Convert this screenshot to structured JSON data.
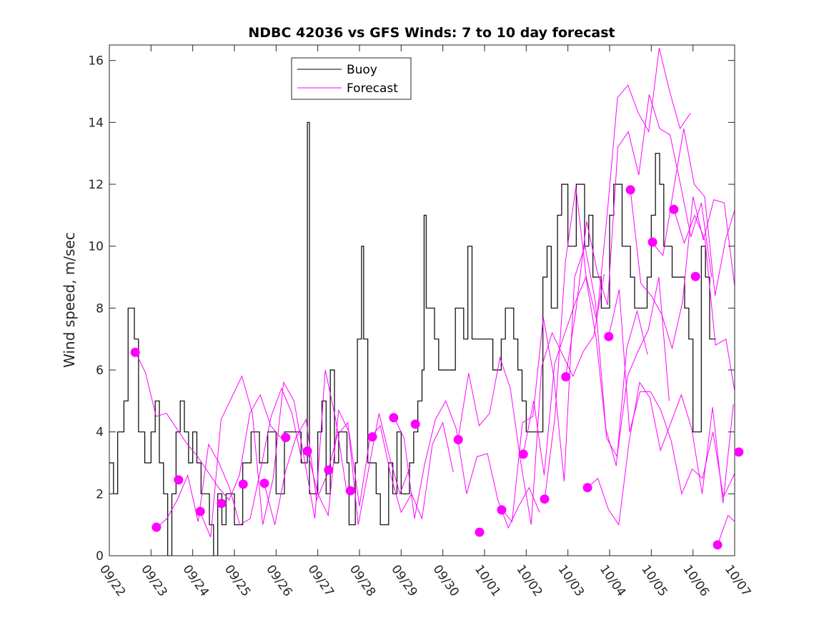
{
  "chart_data": {
    "type": "line",
    "title": "NDBC 42036 vs GFS Winds: 7 to 10 day forecast",
    "xlabel": "",
    "ylabel": "Wind speed, m/sec",
    "xlim": [
      0,
      15
    ],
    "ylim": [
      0,
      16.5
    ],
    "x_units": "days since 09/22",
    "xtick_labels": [
      "09/22",
      "09/23",
      "09/24",
      "09/25",
      "09/26",
      "09/27",
      "09/28",
      "09/29",
      "09/30",
      "10/01",
      "10/02",
      "10/03",
      "10/04",
      "10/05",
      "10/06",
      "10/07"
    ],
    "yticks": [
      0,
      2,
      4,
      6,
      8,
      10,
      12,
      14,
      16
    ],
    "legend": {
      "placement": "top-center",
      "entries": [
        {
          "label": "Buoy",
          "color": "#000000"
        },
        {
          "label": "Forecast",
          "color": "#ff00ff"
        }
      ]
    },
    "colors": {
      "buoy": "#000000",
      "forecast": "#ff00ff",
      "axis": "#262626"
    },
    "buoy": {
      "x": [
        0,
        0.1,
        0.2,
        0.35,
        0.45,
        0.55,
        0.6,
        0.7,
        0.85,
        1.0,
        1.1,
        1.2,
        1.3,
        1.4,
        1.5,
        1.6,
        1.7,
        1.8,
        1.9,
        2.0,
        2.1,
        2.2,
        2.4,
        2.5,
        2.6,
        2.7,
        2.8,
        3.0,
        3.2,
        3.4,
        3.6,
        3.8,
        4.0,
        4.2,
        4.4,
        4.6,
        4.75,
        4.8,
        5.0,
        5.1,
        5.2,
        5.3,
        5.4,
        5.5,
        5.7,
        5.75,
        5.9,
        5.95,
        6.05,
        6.1,
        6.2,
        6.4,
        6.5,
        6.7,
        6.8,
        6.9,
        7.0,
        7.2,
        7.3,
        7.4,
        7.5,
        7.55,
        7.6,
        7.8,
        7.9,
        8.1,
        8.3,
        8.5,
        8.6,
        8.7,
        9.0,
        9.2,
        9.4,
        9.5,
        9.7,
        9.8,
        9.9,
        10.0,
        10.1,
        10.3,
        10.4,
        10.5,
        10.6,
        10.75,
        10.85,
        11.0,
        11.2,
        11.4,
        11.5,
        11.6,
        11.7,
        11.8,
        12.0,
        12.1,
        12.3,
        12.5,
        12.6,
        12.9,
        13.0,
        13.1,
        13.2,
        13.3,
        13.5,
        13.8,
        13.9,
        14.0,
        14.2,
        14.3,
        14.4
      ],
      "y": [
        3,
        2,
        4,
        5,
        8,
        8,
        7,
        4,
        3,
        4,
        5,
        3,
        2,
        0,
        2,
        4,
        5,
        4,
        3,
        4,
        3,
        2,
        1,
        0,
        2,
        1,
        2,
        1,
        3,
        4,
        3,
        4,
        2,
        4,
        4,
        3,
        14,
        2,
        4,
        5,
        2,
        6,
        3,
        4,
        3,
        1,
        3,
        7,
        10,
        7,
        3,
        2,
        1,
        3,
        2,
        4,
        2,
        3,
        4,
        5,
        6,
        11,
        8,
        7,
        6,
        6,
        8,
        7,
        10,
        7,
        7,
        6,
        7,
        8,
        7,
        6,
        5,
        4,
        4,
        4,
        9,
        10,
        8,
        11,
        12,
        10,
        12,
        10,
        11,
        9,
        9,
        8,
        11,
        12,
        10,
        9,
        8,
        9,
        11,
        13,
        12,
        10,
        9,
        8,
        7,
        4,
        10,
        9,
        7
      ]
    },
    "forecast_step_days": 0.25,
    "forecast": [
      {
        "start": 0.62,
        "values": [
          6.6,
          5.9,
          4.5,
          4.6,
          4.1,
          3.6,
          3.2,
          2.7,
          2.2,
          1.8,
          2.6,
          4.6,
          5.2,
          4.2,
          3.8
        ]
      },
      {
        "start": 1.13,
        "values": [
          0.9,
          1.2,
          1.8,
          2.6,
          1.1,
          3.6,
          3.0,
          2.2,
          1.0,
          1.2,
          2.8,
          4.5,
          5.4,
          4.6,
          3.0
        ]
      },
      {
        "start": 2.18,
        "values": [
          1.4,
          0.6,
          4.4,
          5.1,
          5.8,
          4.6,
          1.0,
          2.5,
          5.6,
          5.0,
          3.1,
          1.2,
          6.0,
          4.4,
          2.2
        ]
      },
      {
        "start": 3.72,
        "values": [
          2.3,
          1.0,
          2.7,
          3.8,
          4.4,
          1.8,
          2.6,
          3.9,
          4.3,
          1.0,
          2.8,
          4.6,
          3.2,
          2.0,
          2.9
        ]
      },
      {
        "start": 4.75,
        "values": [
          3.4,
          2.0,
          1.3,
          4.7,
          4.0,
          1.6,
          3.8,
          4.2,
          2.6,
          1.4,
          2.0,
          1.2,
          3.6,
          4.3,
          2.7
        ]
      },
      {
        "start": 6.82,
        "values": [
          4.5,
          3.8,
          1.2,
          3.0,
          4.4,
          5.0,
          4.1,
          2.0,
          3.2,
          3.3,
          1.8,
          0.9,
          1.6,
          2.2,
          1.4
        ]
      },
      {
        "start": 8.37,
        "values": [
          3.8,
          5.9,
          4.2,
          4.6,
          6.4,
          5.4,
          3.0,
          1.0,
          6.1,
          7.2,
          6.5,
          5.8,
          6.6,
          7.1,
          9.1
        ]
      },
      {
        "start": 9.41,
        "values": [
          1.5,
          1.1,
          4.3,
          4.5,
          7.7,
          5.8,
          2.4,
          9.0,
          10.0,
          8.2,
          4.1,
          2.9,
          6.7,
          7.9,
          6.5
        ]
      },
      {
        "start": 9.93,
        "values": [
          3.3,
          5.0,
          2.6,
          6.2,
          7.2,
          8.2,
          9.0,
          7.0,
          3.8,
          3.2,
          5.8,
          6.6,
          7.3,
          9.0,
          5.0
        ]
      },
      {
        "start": 10.44,
        "values": [
          1.8,
          4.5,
          9.5,
          11.9,
          9.0,
          7.6,
          11.0,
          14.8,
          15.2,
          14.3,
          13.7,
          16.4,
          15.0,
          13.8,
          14.3
        ]
      },
      {
        "start": 10.95,
        "values": [
          5.8,
          8.0,
          10.8,
          9.2,
          8.1,
          13.2,
          13.7,
          12.3,
          14.9,
          13.8,
          13.6,
          12.0,
          10.3,
          11.4,
          9.0
        ]
      },
      {
        "start": 11.47,
        "values": [
          2.2,
          2.5,
          1.5,
          1.0,
          3.7,
          5.6,
          5.1,
          3.4,
          4.3,
          5.2,
          4.1,
          2.0,
          4.8,
          1.7,
          4.9
        ]
      },
      {
        "start": 11.98,
        "values": [
          7.1,
          8.6,
          4.0,
          5.3,
          5.3,
          4.7,
          3.7,
          2.0,
          2.8,
          2.5,
          4.0,
          1.9,
          2.6,
          3.4,
          2.7
        ]
      },
      {
        "start": 12.5,
        "values": [
          11.8,
          8.8,
          8.4,
          7.8,
          6.7,
          8.2,
          11.6,
          10.2,
          11.5,
          11.4,
          8.7,
          7.3,
          9.6,
          8.2,
          6.9
        ]
      },
      {
        "start": 13.03,
        "values": [
          10.1,
          9.7,
          11.8,
          13.8,
          12.0,
          11.6,
          8.4,
          10.2,
          11.3,
          7.0,
          6.4,
          3.8,
          2.2,
          1.9,
          4.2
        ]
      },
      {
        "start": 13.54,
        "values": [
          11.2,
          10.1,
          11.0,
          10.2,
          6.8,
          7.0,
          5.0,
          3.3,
          2.8,
          2.2,
          1.8,
          2.3,
          4.9,
          3.8,
          2.2
        ]
      },
      {
        "start": 14.59,
        "values": [
          0.35,
          1.3,
          1.0,
          1.9,
          3.3,
          3.5,
          2.0,
          2.3,
          2.2
        ]
      }
    ],
    "markers": [
      [
        0.62,
        6.57
      ],
      [
        1.13,
        0.92
      ],
      [
        1.66,
        2.45
      ],
      [
        2.18,
        1.43
      ],
      [
        2.69,
        1.69
      ],
      [
        3.21,
        2.31
      ],
      [
        3.72,
        2.34
      ],
      [
        4.23,
        3.82
      ],
      [
        4.75,
        3.38
      ],
      [
        5.26,
        2.77
      ],
      [
        5.78,
        2.1
      ],
      [
        6.31,
        3.84
      ],
      [
        6.82,
        4.46
      ],
      [
        7.34,
        4.25
      ],
      [
        8.37,
        3.75
      ],
      [
        8.88,
        0.76
      ],
      [
        9.41,
        1.48
      ],
      [
        9.93,
        3.28
      ],
      [
        10.44,
        1.83
      ],
      [
        10.95,
        5.78
      ],
      [
        11.47,
        2.2
      ],
      [
        11.98,
        7.08
      ],
      [
        12.5,
        11.82
      ],
      [
        13.03,
        10.13
      ],
      [
        13.54,
        11.19
      ],
      [
        14.06,
        9.02
      ],
      [
        14.59,
        0.35
      ],
      [
        15.1,
        3.35
      ]
    ]
  }
}
